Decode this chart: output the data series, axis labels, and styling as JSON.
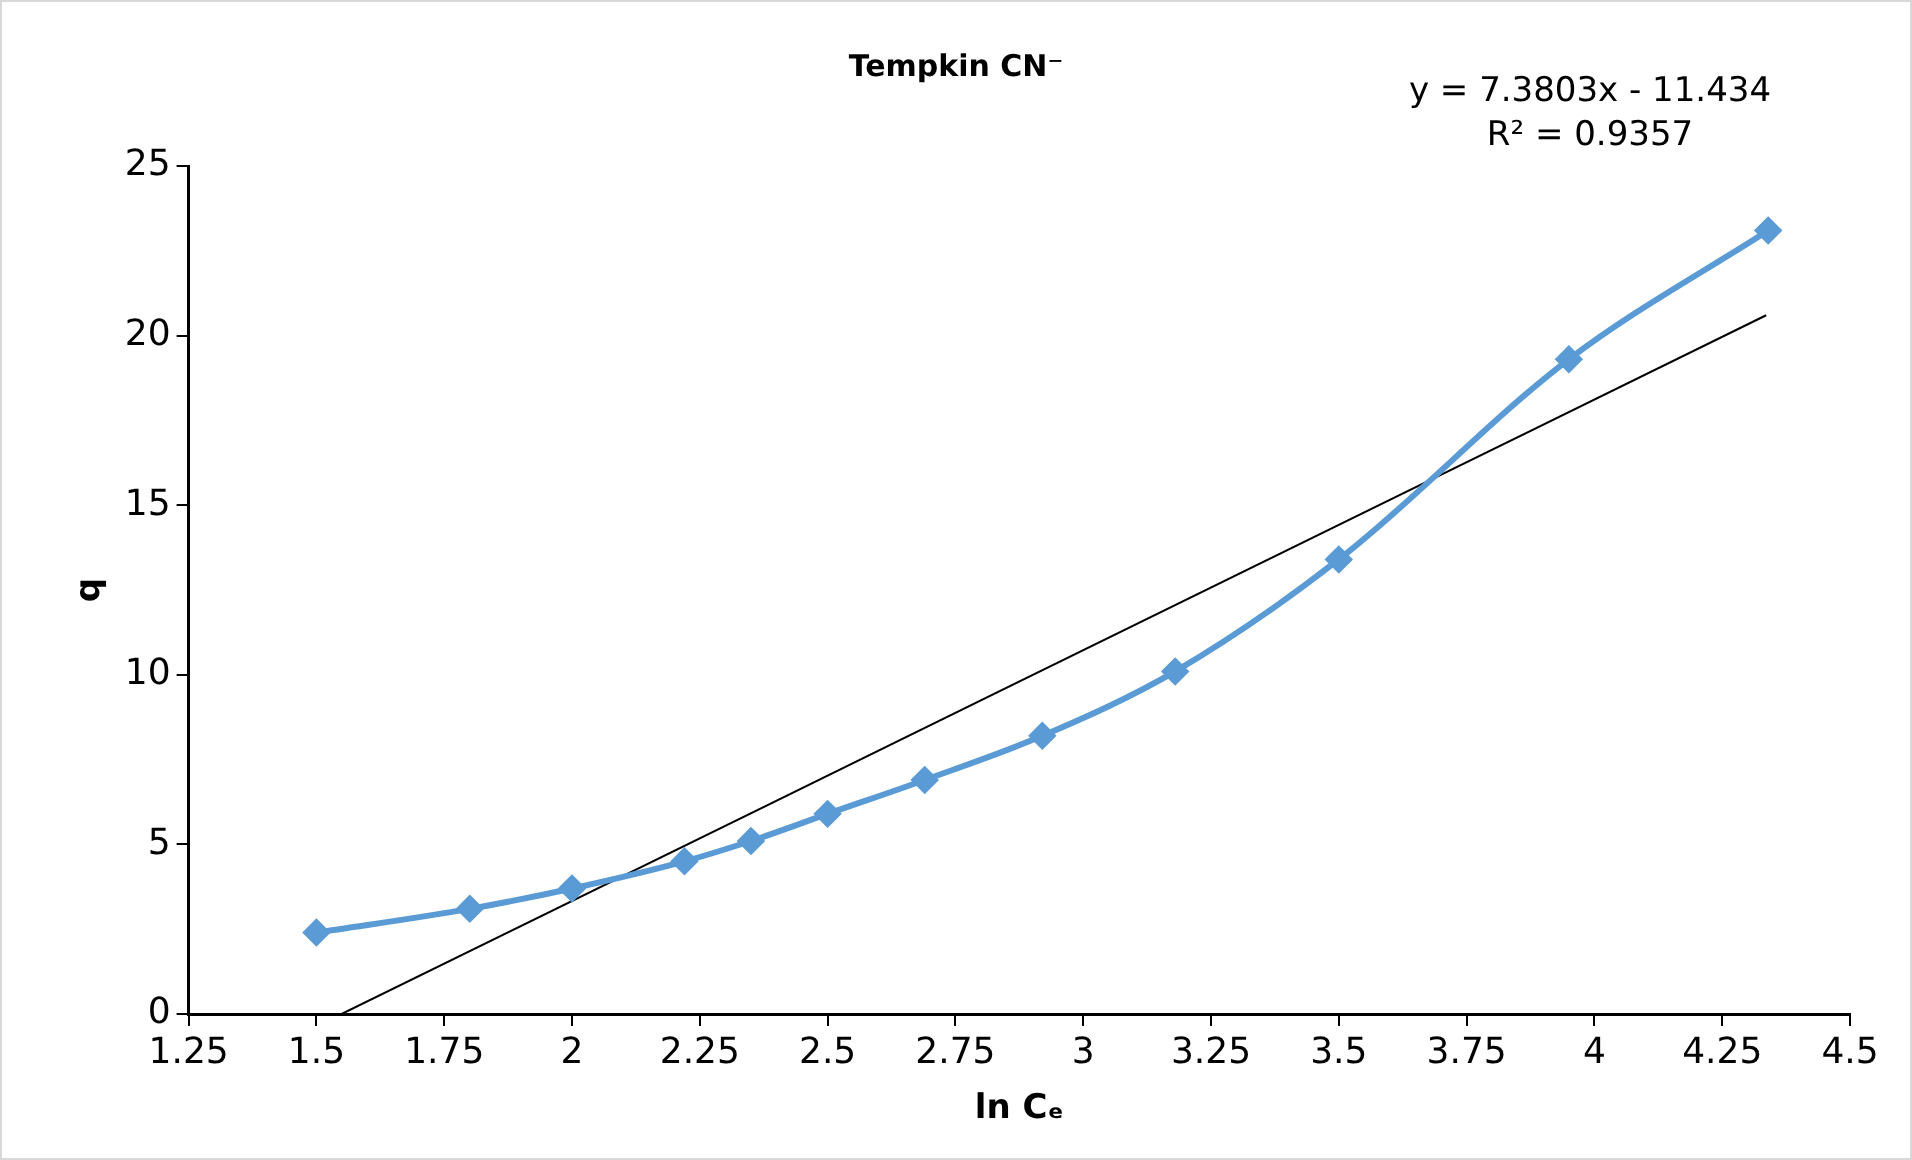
{
  "chart_data": {
    "type": "line",
    "title": "Tempkin CN⁻",
    "xlabel": "ln Cₑ",
    "ylabel": "q",
    "annotations": [
      "y = 7.3803x - 11.434",
      "R² = 0.9357"
    ],
    "series": [
      {
        "color": "#5b9bd5",
        "marker": "diamond",
        "x": [
          1.5,
          1.8,
          2.0,
          2.22,
          2.35,
          2.5,
          2.69,
          2.92,
          3.18,
          3.5,
          3.95,
          4.34
        ],
        "values": [
          2.4,
          3.1,
          3.7,
          4.5,
          5.1,
          5.9,
          6.9,
          8.2,
          10.1,
          13.4,
          19.3,
          23.1
        ]
      },
      {
        "type": "line",
        "color": "#000000",
        "marker": "none",
        "x": [
          1.5493,
          4.336
        ],
        "values": [
          0,
          20.6
        ]
      }
    ],
    "xlim": [
      1.25,
      4.5
    ],
    "xticks": [
      1.25,
      1.5,
      1.75,
      2,
      2.25,
      2.5,
      2.75,
      3,
      3.25,
      3.5,
      3.75,
      4,
      4.25,
      4.5
    ],
    "ylim": [
      0,
      25
    ],
    "yticks": [
      0,
      5,
      10,
      15,
      20,
      25
    ],
    "grid": false,
    "legend": false
  }
}
